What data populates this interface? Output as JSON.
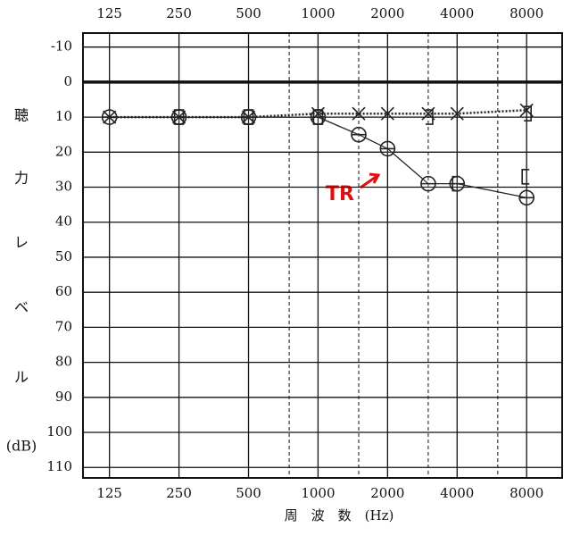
{
  "chart_data": {
    "type": "audiogram",
    "xlabel": "周　波　数　(Hz)",
    "ylabel": [
      "聴",
      "力",
      "レ",
      "ベ",
      "ル",
      "(dB)"
    ],
    "annotation": "TR",
    "x_log": true,
    "y_inverted": true,
    "xlim": [
      96,
      11400
    ],
    "ylim": [
      -14,
      113
    ],
    "xticks": [
      125,
      250,
      500,
      1000,
      2000,
      4000,
      8000
    ],
    "xminorticks": [
      750,
      1500,
      3000,
      6000
    ],
    "yticks": [
      -10,
      0,
      10,
      20,
      30,
      40,
      50,
      60,
      70,
      80,
      90,
      100,
      110
    ],
    "grid": true,
    "series": [
      {
        "marker": "circle",
        "line": "solid",
        "color": "#222",
        "x": [
          125,
          250,
          500,
          1000,
          1500,
          2000,
          3000,
          4000,
          8000
        ],
        "values": [
          10,
          10,
          10,
          10,
          15,
          19,
          29,
          29,
          33
        ]
      },
      {
        "marker": "cross",
        "line": "dotted",
        "color": "#222",
        "x": [
          125,
          250,
          500,
          1000,
          1500,
          2000,
          3000,
          4000,
          8000
        ],
        "values": [
          10,
          10,
          10,
          9,
          9,
          9,
          9,
          9,
          8
        ]
      },
      {
        "marker": "bracket-left",
        "line": "none",
        "color": "#222",
        "x": [
          250,
          500,
          1000,
          4000,
          8000
        ],
        "values": [
          10,
          10,
          10,
          29,
          27
        ]
      },
      {
        "marker": "bracket-right",
        "line": "none",
        "color": "#222",
        "x": [
          250,
          500,
          1000,
          3000,
          8000
        ],
        "values": [
          10,
          10,
          10,
          10,
          9
        ]
      }
    ]
  }
}
